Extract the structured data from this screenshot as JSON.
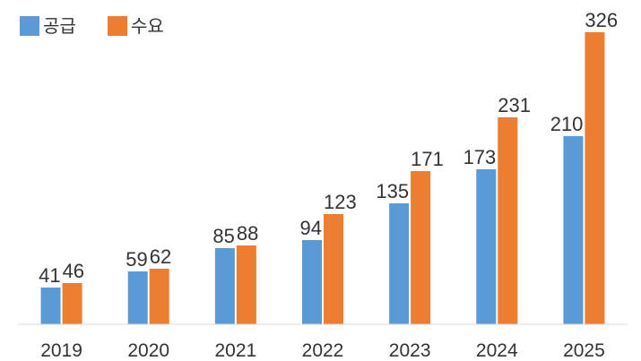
{
  "chart_data": {
    "type": "bar",
    "title": "",
    "xlabel": "",
    "ylabel": "",
    "categories": [
      "2019",
      "2020",
      "2021",
      "2022",
      "2023",
      "2024",
      "2025"
    ],
    "series": [
      {
        "name": "공급",
        "color": "#5b9bd5",
        "values": [
          41,
          59,
          85,
          94,
          135,
          173,
          210
        ]
      },
      {
        "name": "수요",
        "color": "#ed7d31",
        "values": [
          46,
          62,
          88,
          123,
          171,
          231,
          326
        ]
      }
    ],
    "ylim": [
      0,
      350
    ],
    "grid": false,
    "legend_position": "top-left",
    "axis_color": "#d9d9d9",
    "text_color": "#333333"
  }
}
